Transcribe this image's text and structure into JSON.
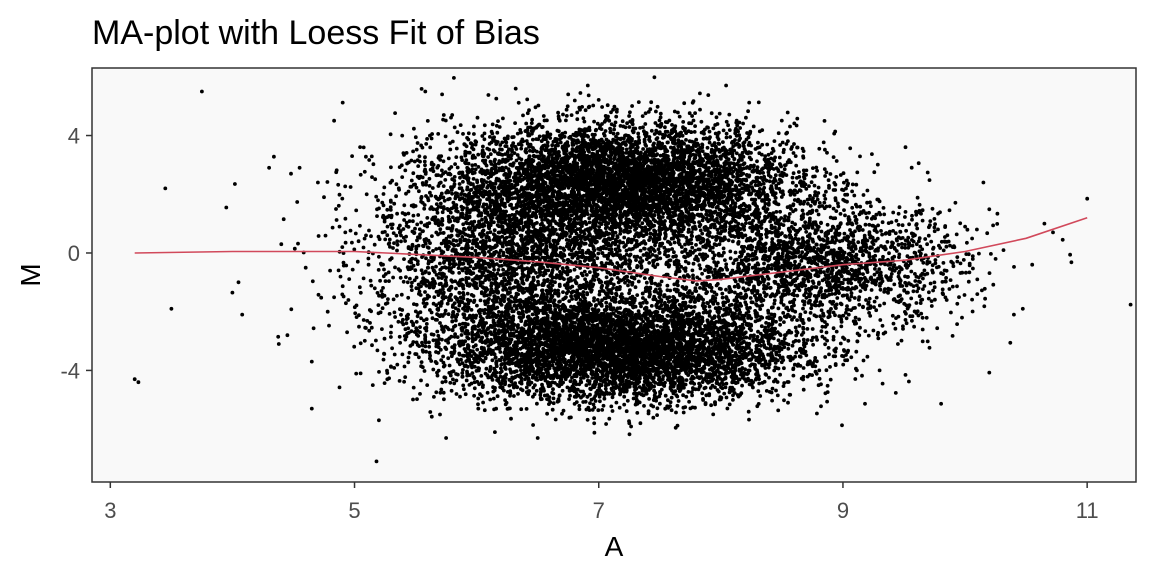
{
  "chart_data": {
    "type": "scatter",
    "title": "MA-plot with Loess Fit of Bias",
    "xlabel": "A",
    "ylabel": "M",
    "xlim": [
      2.85,
      11.4
    ],
    "ylim": [
      -7.8,
      6.3
    ],
    "x_ticks": [
      3,
      5,
      7,
      9,
      11
    ],
    "x_tick_labels": [
      "3",
      "5",
      "7",
      "9",
      "11"
    ],
    "y_ticks": [
      4,
      0,
      -4
    ],
    "y_tick_labels": [
      "4",
      "0",
      "-4"
    ],
    "grid": false,
    "legend": "none",
    "colors": {
      "panel_background": "#f9f9f9",
      "panel_border": "#333333",
      "points": "#000000",
      "loess_line": "#d1495b"
    },
    "point_series": {
      "name": "",
      "points": [
        [
          3.2,
          -4.3
        ],
        [
          3.23,
          -4.4
        ],
        [
          3.45,
          2.2
        ],
        [
          3.5,
          -1.9
        ],
        [
          3.75,
          5.5
        ],
        [
          3.95,
          1.55
        ],
        [
          4.0,
          -1.35
        ],
        [
          4.02,
          2.35
        ],
        [
          4.05,
          -1.0
        ],
        [
          4.08,
          -2.1
        ],
        [
          4.3,
          2.9
        ],
        [
          4.38,
          -3.1
        ],
        [
          4.4,
          0.3
        ],
        [
          4.42,
          1.15
        ],
        [
          4.45,
          -2.8
        ],
        [
          4.48,
          2.7
        ],
        [
          4.55,
          2.9
        ],
        [
          4.6,
          -0.5
        ],
        [
          4.65,
          -3.7
        ],
        [
          4.65,
          -5.3
        ],
        [
          4.7,
          2.4
        ],
        [
          4.75,
          1.9
        ],
        [
          4.78,
          -2.0
        ],
        [
          4.8,
          -0.6
        ],
        [
          4.85,
          2.75
        ],
        [
          4.9,
          0.2
        ],
        [
          4.95,
          -1.6
        ],
        [
          4.98,
          3.3
        ],
        [
          5.05,
          -4.1
        ],
        [
          5.1,
          2.0
        ],
        [
          5.15,
          -4.5
        ],
        [
          5.2,
          -5.7
        ],
        [
          5.18,
          -7.1
        ],
        [
          5.25,
          1.2
        ],
        [
          5.3,
          -2.5
        ],
        [
          5.35,
          -3.8
        ],
        [
          5.4,
          3.4
        ],
        [
          5.45,
          -3.4
        ],
        [
          5.5,
          1.6
        ],
        [
          5.58,
          5.5
        ],
        [
          5.6,
          4.5
        ],
        [
          5.65,
          -4.9
        ],
        [
          5.7,
          -5.5
        ],
        [
          5.75,
          -6.3
        ],
        [
          5.8,
          4.7
        ],
        [
          6.15,
          -6.1
        ],
        [
          6.32,
          5.6
        ],
        [
          6.5,
          -6.3
        ],
        [
          6.75,
          5.4
        ],
        [
          6.85,
          5.45
        ],
        [
          7.25,
          -5.8
        ],
        [
          7.7,
          5.1
        ],
        [
          8.55,
          -5.1
        ],
        [
          9.3,
          -4.0
        ],
        [
          9.45,
          -3.1
        ],
        [
          10.15,
          2.4
        ],
        [
          10.4,
          -2.1
        ],
        [
          10.55,
          -0.4
        ],
        [
          10.65,
          1.0
        ],
        [
          10.72,
          0.7
        ],
        [
          10.8,
          0.45
        ],
        [
          11.0,
          1.85
        ],
        [
          10.25,
          -0.2
        ],
        [
          10.0,
          0.9
        ],
        [
          9.85,
          -1.6
        ],
        [
          9.6,
          1.3
        ],
        [
          9.9,
          0.2
        ],
        [
          10.1,
          -0.9
        ]
      ]
    },
    "point_clusters": [
      {
        "center": [
          7.2,
          2.4
        ],
        "spread": [
          0.7,
          1.0
        ],
        "count": 5200
      },
      {
        "center": [
          7.2,
          -3.3
        ],
        "spread": [
          0.7,
          0.85
        ],
        "count": 5200
      },
      {
        "center": [
          8.9,
          -0.4
        ],
        "spread": [
          0.55,
          1.0
        ],
        "count": 1500
      },
      {
        "center": [
          6.2,
          -0.3
        ],
        "spread": [
          0.55,
          1.7
        ],
        "count": 2300
      },
      {
        "center": [
          7.5,
          -0.3
        ],
        "spread": [
          0.9,
          1.6
        ],
        "count": 1500
      }
    ],
    "loess_fit": {
      "name": "",
      "x": [
        3.2,
        4.0,
        5.0,
        5.5,
        6.0,
        6.5,
        7.0,
        7.5,
        7.8,
        8.0,
        8.5,
        9.0,
        9.5,
        10.0,
        10.5,
        11.0
      ],
      "y": [
        0.0,
        0.05,
        0.05,
        -0.05,
        -0.15,
        -0.3,
        -0.5,
        -0.8,
        -0.95,
        -0.9,
        -0.65,
        -0.4,
        -0.25,
        0.05,
        0.5,
        1.2
      ]
    }
  }
}
